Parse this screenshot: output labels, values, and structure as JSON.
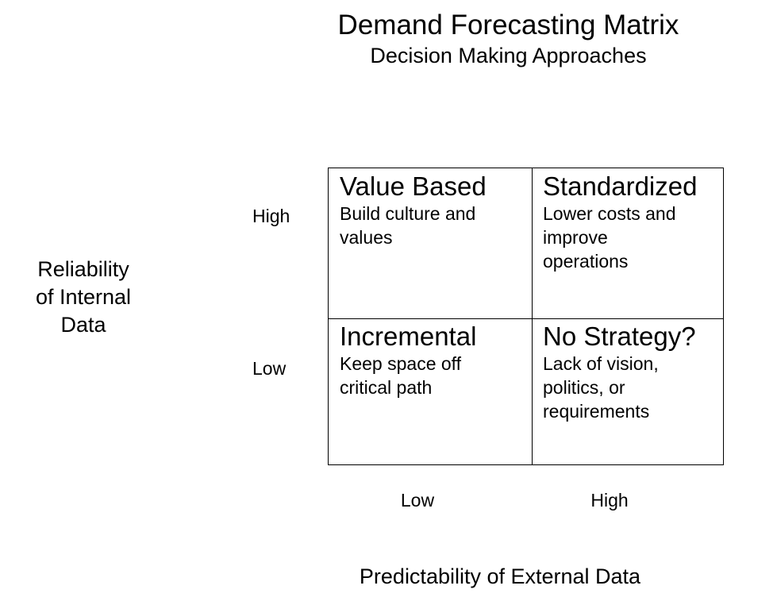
{
  "header": {
    "title": "Demand Forecasting Matrix",
    "subtitle": "Decision Making Approaches"
  },
  "y_axis": {
    "title": "Reliability\nof Internal\nData",
    "ticks": {
      "high": "High",
      "low": "Low"
    }
  },
  "x_axis": {
    "title": "Predictability of External Data",
    "ticks": {
      "low": "Low",
      "high": "High"
    }
  },
  "quadrants": {
    "top_left": {
      "title": "Value Based",
      "description": "Build culture and\nvalues"
    },
    "top_right": {
      "title": "Standardized",
      "description": "Lower costs and\nimprove\noperations"
    },
    "bottom_left": {
      "title": "Incremental",
      "description": "Keep space off\ncritical path"
    },
    "bottom_right": {
      "title": "No Strategy?",
      "description": "Lack of vision,\npolitics, or\nrequirements"
    }
  }
}
